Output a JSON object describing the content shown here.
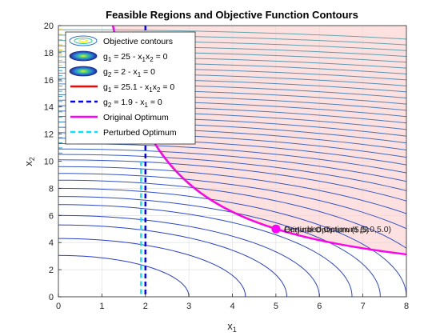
{
  "chart_data": {
    "type": "line",
    "title": "Feasible Regions and Objective Function Contours",
    "xlabel": "x",
    "xlabel_sub": "1",
    "ylabel": "x",
    "ylabel_sub": "2",
    "xlim": [
      0,
      8
    ],
    "ylim": [
      0,
      20
    ],
    "xticks": [
      "0",
      "1",
      "2",
      "3",
      "4",
      "5",
      "6",
      "7",
      "8"
    ],
    "yticks": [
      "0",
      "2",
      "4",
      "6",
      "8",
      "10",
      "12",
      "14",
      "16",
      "18",
      "20"
    ],
    "grid": true,
    "legend_position": "top-left",
    "contour_x_intercepts": [
      3.0,
      4.3,
      5.25,
      6.0,
      6.75,
      7.4,
      8.0
    ],
    "contour_y_intercepts_left": [
      3.05,
      4.3,
      5.3,
      6.0,
      6.8,
      7.4,
      8.0,
      8.6,
      9.1,
      9.6,
      10.1,
      10.5,
      10.9,
      11.3,
      11.7,
      12.1,
      12.5,
      12.9,
      13.3,
      13.7,
      14.1,
      14.5,
      14.9,
      15.3,
      15.7,
      16.1,
      16.5,
      16.9,
      17.3,
      17.7,
      18.1,
      18.5,
      18.9,
      19.3,
      19.7
    ],
    "series": [
      {
        "name": "g1 = 25.1 - x1x2 = 0",
        "color": "#ff0000"
      },
      {
        "name": "g2 = 1.9 - x1 = 0",
        "color": "#0000ff",
        "x": 1.9
      },
      {
        "name": "Original Optimum",
        "color": "#ff00ff",
        "x": 5,
        "y": 5
      },
      {
        "name": "Perturbed Optimum",
        "color": "#00e5ff",
        "x": 5.01,
        "y": 5.01,
        "line_x": 1.9
      },
      {
        "name": "g2 constraint line",
        "color": "#0000ff",
        "x": 2.0
      }
    ],
    "g1_constant": 25,
    "g1_perturbed_constant": 25.1,
    "infeasible_fill": "#fde0e0",
    "legend": {
      "items": [
        {
          "text_parts": [
            "Objective contours"
          ],
          "style": "contour"
        },
        {
          "text_parts": [
            "g",
            "1",
            " = 25 - x",
            "1",
            "x",
            "2",
            " = 0"
          ],
          "style": "filled-contour"
        },
        {
          "text_parts": [
            "g",
            "2",
            " = 2 - x",
            "1",
            " = 0"
          ],
          "style": "filled-contour"
        },
        {
          "text_parts": [
            "g",
            "1",
            " = 25.1 - x",
            "1",
            "x",
            "2",
            " = 0"
          ],
          "style": "red-line"
        },
        {
          "text_parts": [
            "g",
            "2",
            " = 1.9 - x",
            "1",
            " = 0"
          ],
          "style": "blue-dash"
        },
        {
          "text_parts": [
            "Original Optimum"
          ],
          "style": "magenta-line"
        },
        {
          "text_parts": [
            "Perturbed Optimum"
          ],
          "style": "cyan-dash"
        }
      ]
    },
    "annotations": [
      {
        "text": "Original Optimum (5,5)",
        "x": 5,
        "y": 5
      },
      {
        "text": "Perturbed Optimum (5.0,5.0)",
        "x": 5.01,
        "y": 5.01
      }
    ]
  }
}
